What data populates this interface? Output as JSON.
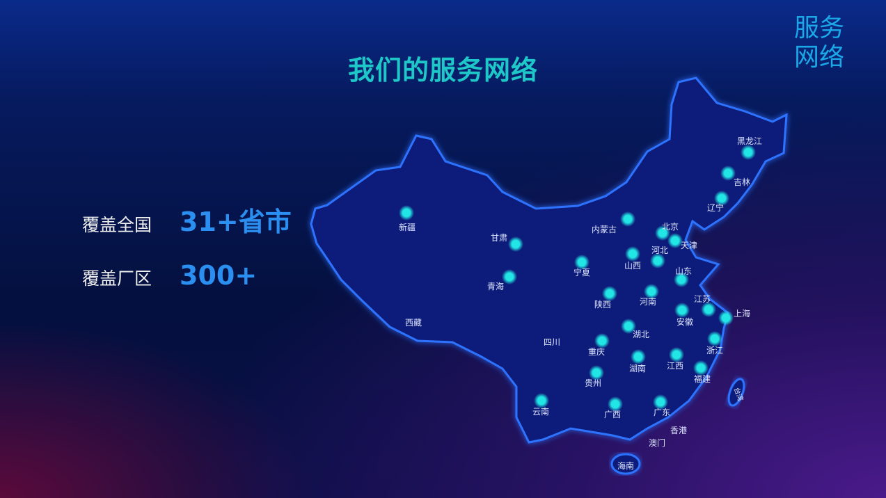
{
  "corner_title": "服务网络",
  "title": "我们的服务网络",
  "stats": [
    {
      "label": "覆盖全国",
      "value": "31+省市"
    },
    {
      "label": "覆盖厂区",
      "value": "300+"
    }
  ],
  "map": {
    "provinces_with_marker": [
      "新疆",
      "甘肃",
      "青海",
      "内蒙古",
      "宁夏",
      "陕西",
      "山西",
      "北京",
      "天津",
      "河北",
      "山东",
      "河南",
      "江苏",
      "上海",
      "安徽",
      "湖北",
      "浙江",
      "重庆",
      "湖南",
      "江西",
      "福建",
      "贵州",
      "云南",
      "广西",
      "广东",
      "黑龙江",
      "吉林",
      "辽宁"
    ],
    "regions_without_marker": [
      "西藏",
      "四川",
      "香港",
      "澳门",
      "海南",
      "台湾"
    ],
    "marker_color": "#22e6e6",
    "border_color": "#2a6bff"
  }
}
